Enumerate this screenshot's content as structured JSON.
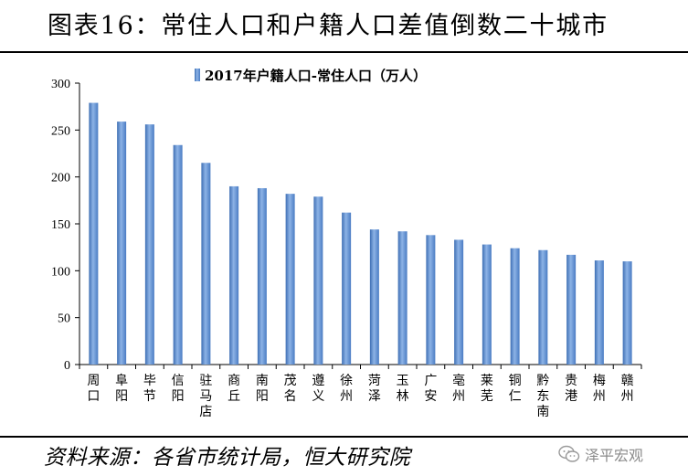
{
  "header": {
    "title": "图表16：常住人口和户籍人口差值倒数二十城市"
  },
  "footer": {
    "source": "资料来源：各省市统计局，恒大研究院",
    "watermark": "泽平宏观"
  },
  "chart_data": {
    "type": "bar",
    "legend": {
      "label": "2017年户籍人口-常住人口（万人）",
      "position": "top-center"
    },
    "series": [
      {
        "name": "2017年户籍人口-常住人口（万人）",
        "color": "#5b8fd0",
        "values": [
          279,
          259,
          256,
          234,
          215,
          190,
          188,
          182,
          179,
          162,
          144,
          142,
          138,
          133,
          128,
          124,
          122,
          117,
          111,
          110
        ]
      }
    ],
    "categories": [
      "周口",
      "阜阳",
      "毕节",
      "信阳",
      "驻马店",
      "商丘",
      "南阳",
      "茂名",
      "遵义",
      "徐州",
      "菏泽",
      "玉林",
      "广安",
      "亳州",
      "莱芜",
      "铜仁",
      "黔东南",
      "贵港",
      "梅州",
      "赣州"
    ],
    "ylim": [
      0,
      300
    ],
    "yticks": [
      0,
      50,
      100,
      150,
      200,
      250,
      300
    ],
    "grid": false
  }
}
